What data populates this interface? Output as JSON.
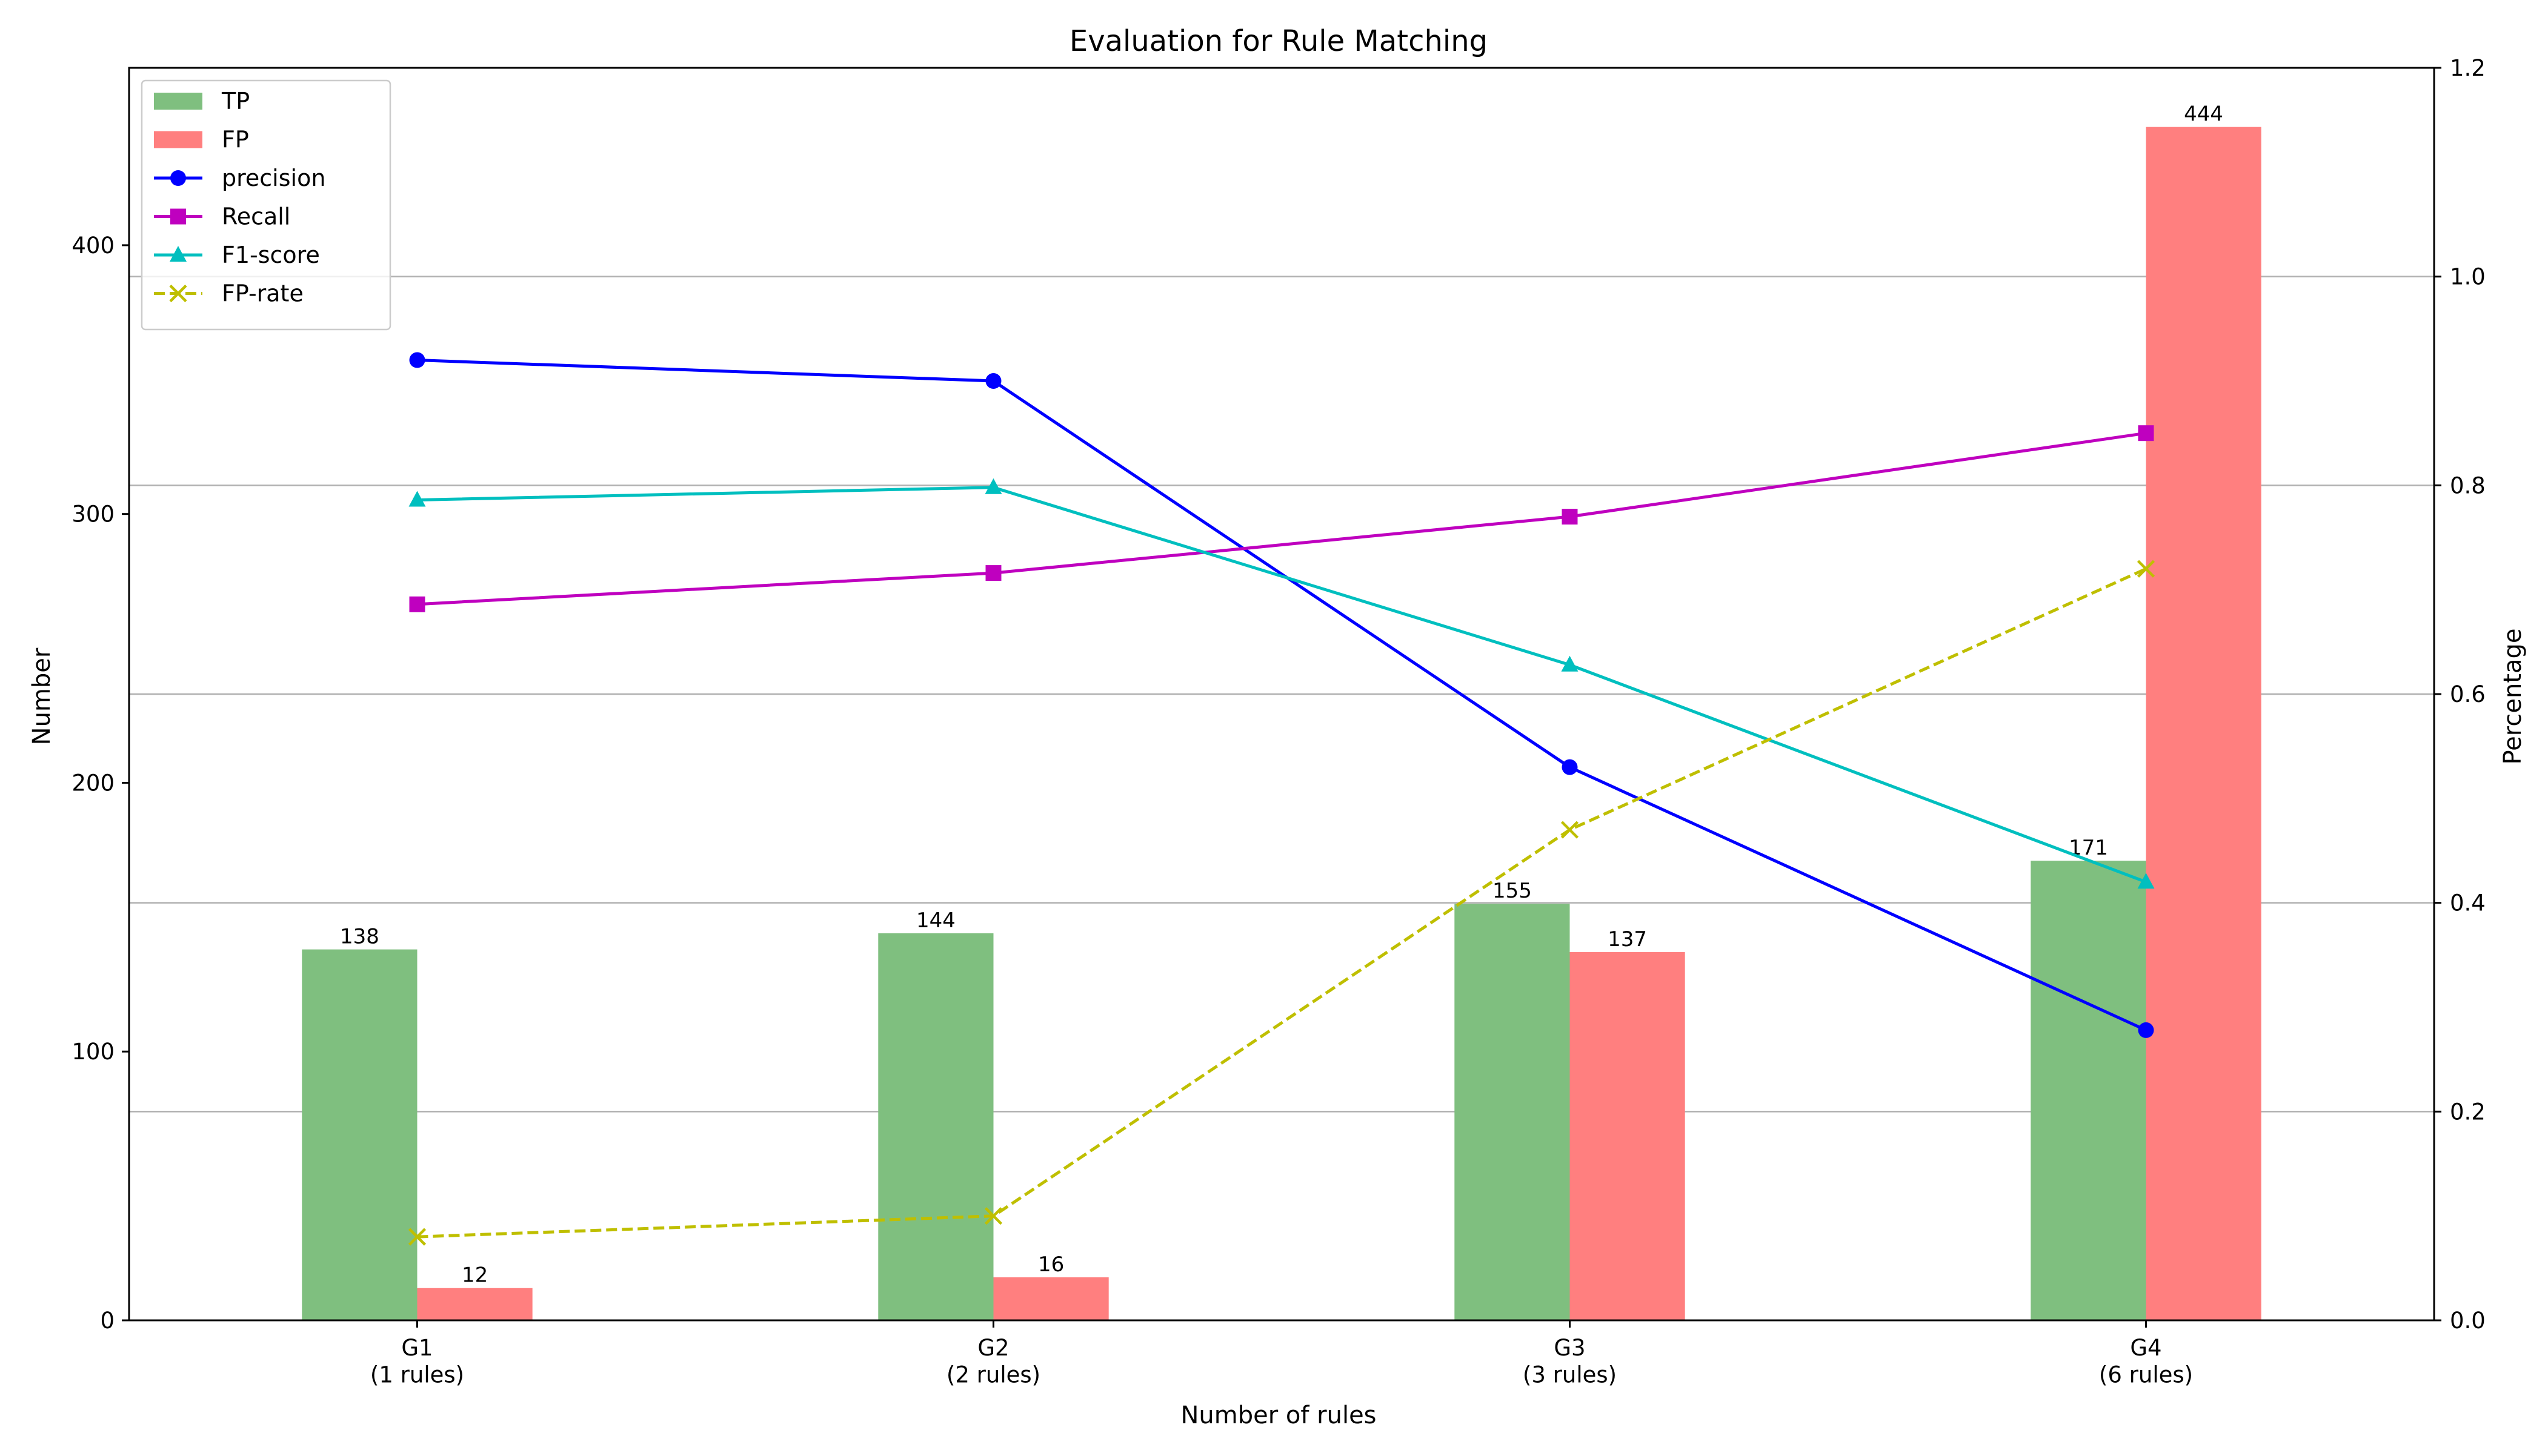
{
  "chart_data": {
    "type": "bar",
    "title": "Evaluation for Rule Matching",
    "xlabel": "Number of rules",
    "ylabel": "Number",
    "y2label": "Percentage",
    "categories": [
      "G1\n(1 rules)",
      "G2\n(2 rules)",
      "G3\n(3 rules)",
      "G4\n(6 rules)"
    ],
    "ylim": [
      0,
      466
    ],
    "y2lim": [
      0,
      1.2
    ],
    "yticks": [
      0,
      100,
      200,
      300,
      400
    ],
    "y2ticks": [
      0.0,
      0.2,
      0.4,
      0.6,
      0.8,
      1.0,
      1.2
    ],
    "y2tick_labels": [
      "0.0",
      "0.2",
      "0.4",
      "0.6",
      "0.8",
      "1.0",
      "1.2"
    ],
    "grid": "horizontal on secondary axis",
    "legend_position": "top-left",
    "bar_series": [
      {
        "name": "TP",
        "values": [
          138,
          144,
          155,
          171
        ],
        "labels": [
          "138",
          "144",
          "155",
          "171"
        ],
        "color": "#7fbf7f"
      },
      {
        "name": "FP",
        "values": [
          12,
          16,
          137,
          444
        ],
        "labels": [
          "12",
          "16",
          "137",
          "444"
        ],
        "color": "#ff7f7f"
      }
    ],
    "line_series": [
      {
        "name": "precision",
        "values": [
          0.92,
          0.9,
          0.53,
          0.278
        ],
        "color": "#0000ff",
        "marker": "circle",
        "dash": "solid"
      },
      {
        "name": "Recall",
        "values": [
          0.686,
          0.716,
          0.77,
          0.85
        ],
        "color": "#bf00bf",
        "marker": "square",
        "dash": "solid"
      },
      {
        "name": "F1-score",
        "values": [
          0.786,
          0.798,
          0.628,
          0.42
        ],
        "color": "#00bfbf",
        "marker": "triangle",
        "dash": "solid"
      },
      {
        "name": "FP-rate",
        "values": [
          0.08,
          0.1,
          0.47,
          0.72
        ],
        "color": "#bfbf00",
        "marker": "x",
        "dash": "dashed"
      }
    ]
  }
}
